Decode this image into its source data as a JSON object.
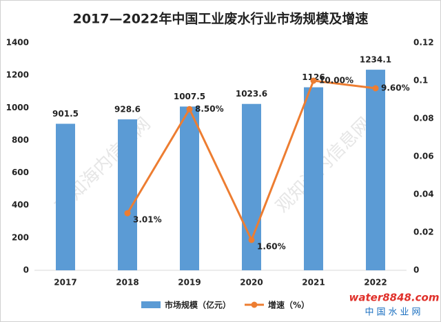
{
  "chart_data": {
    "type": "bar-line",
    "title": "2017—2022年中国工业废水行业市场规模及增速",
    "categories": [
      "2017",
      "2018",
      "2019",
      "2020",
      "2021",
      "2022"
    ],
    "series": [
      {
        "name": "市场规模（亿元）",
        "type": "bar",
        "color": "#5b9bd5",
        "values": [
          901.5,
          928.6,
          1007.5,
          1023.6,
          1126,
          1234.1
        ]
      },
      {
        "name": "增速（%）",
        "type": "line",
        "axis": "y2",
        "color": "#ed7d31",
        "values": [
          null,
          0.0301,
          0.085,
          0.016,
          0.1,
          0.096
        ],
        "value_labels": [
          null,
          "3.01%",
          "8.50%",
          "1.60%",
          "10.00%",
          "9.60%"
        ]
      }
    ],
    "ylim": [
      0,
      1400
    ],
    "yticks": [
      0,
      200,
      400,
      600,
      800,
      1000,
      1200,
      1400
    ],
    "y2lim": [
      0,
      0.12
    ],
    "y2ticks": [
      0,
      0.02,
      0.04,
      0.06,
      0.08,
      0.1,
      0.12
    ],
    "grid": false,
    "legend": "bottom"
  },
  "watermark": "观知海内信息网",
  "logo": {
    "brand": "water8848.com",
    "subtitle": "中国水业网"
  }
}
